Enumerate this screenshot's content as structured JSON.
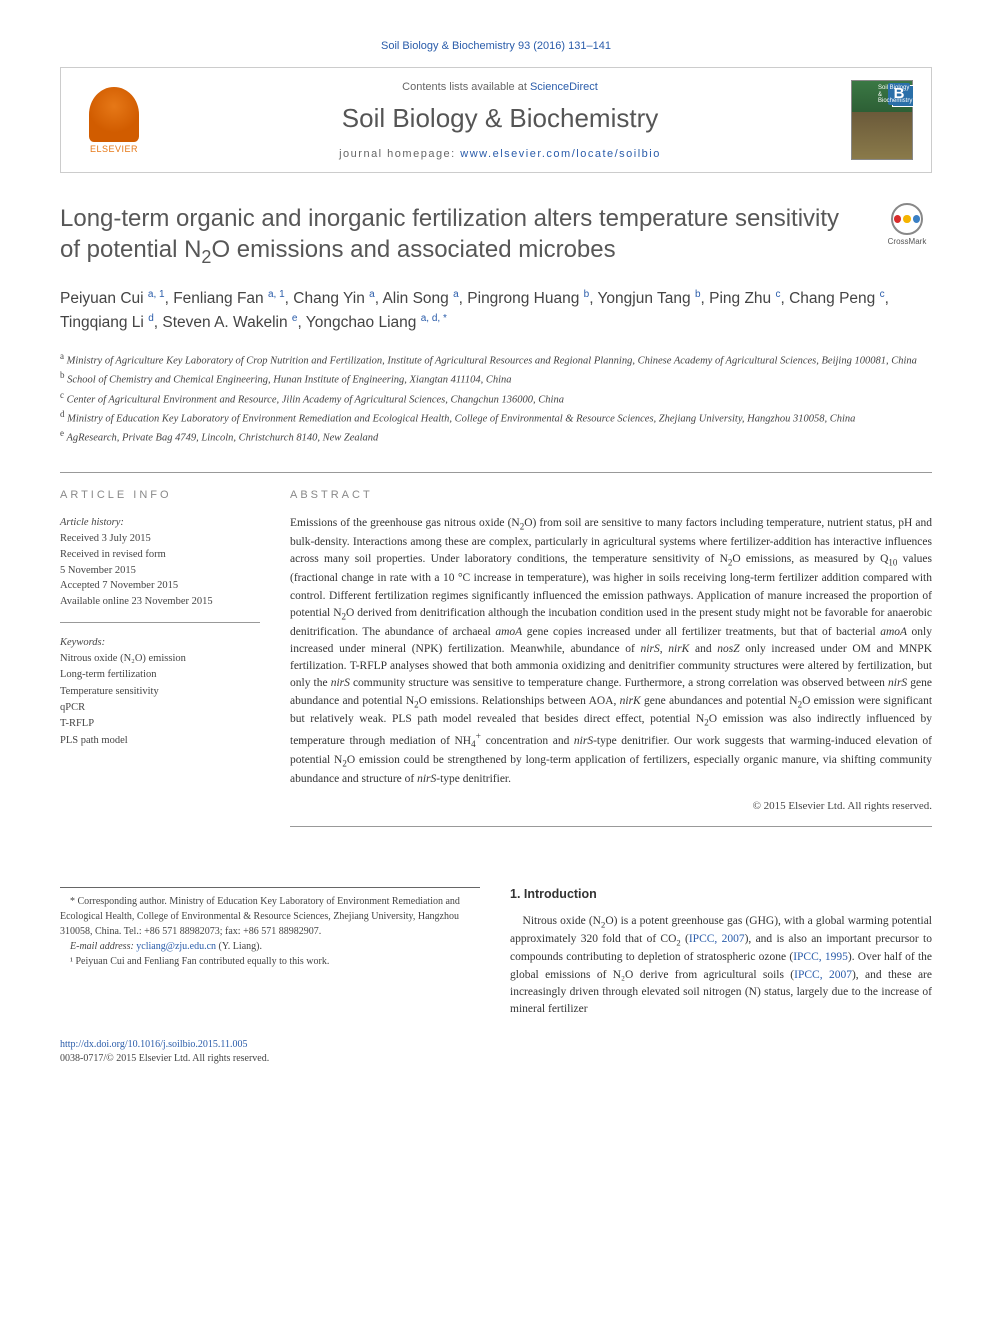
{
  "citation": "Soil Biology & Biochemistry 93 (2016) 131–141",
  "banner": {
    "contents_prefix": "Contents lists available at ",
    "contents_link": "ScienceDirect",
    "journal": "Soil Biology & Biochemistry",
    "homepage_prefix": "journal homepage: ",
    "homepage_url": "www.elsevier.com/locate/soilbio",
    "publisher_label": "ELSEVIER",
    "cover_badge": "B",
    "cover_label_1": "Soil Biology &",
    "cover_label_2": "Biochemistry"
  },
  "crossmark_label": "CrossMark",
  "title": "Long-term organic and inorganic fertilization alters temperature sensitivity of potential N₂O emissions and associated microbes",
  "authors_html": "Peiyuan Cui <sup>a, 1</sup>, Fenliang Fan <sup>a, 1</sup>, Chang Yin <sup>a</sup>, Alin Song <sup>a</sup>, Pingrong Huang <sup>b</sup>, Yongjun Tang <sup>b</sup>, Ping Zhu <sup>c</sup>, Chang Peng <sup>c</sup>, Tingqiang Li <sup>d</sup>, Steven A. Wakelin <sup>e</sup>, Yongchao Liang <sup>a, d, *</sup>",
  "affiliations": {
    "a": "Ministry of Agriculture Key Laboratory of Crop Nutrition and Fertilization, Institute of Agricultural Resources and Regional Planning, Chinese Academy of Agricultural Sciences, Beijing 100081, China",
    "b": "School of Chemistry and Chemical Engineering, Hunan Institute of Engineering, Xiangtan 411104, China",
    "c": "Center of Agricultural Environment and Resource, Jilin Academy of Agricultural Sciences, Changchun 136000, China",
    "d": "Ministry of Education Key Laboratory of Environment Remediation and Ecological Health, College of Environmental & Resource Sciences, Zhejiang University, Hangzhou 310058, China",
    "e": "AgResearch, Private Bag 4749, Lincoln, Christchurch 8140, New Zealand"
  },
  "info": {
    "heading": "ARTICLE INFO",
    "history_label": "Article history:",
    "received": "Received 3 July 2015",
    "revised": "Received in revised form",
    "revised_date": "5 November 2015",
    "accepted": "Accepted 7 November 2015",
    "online": "Available online 23 November 2015",
    "keywords_label": "Keywords:",
    "keywords": [
      "Nitrous oxide (N₂O) emission",
      "Long-term fertilization",
      "Temperature sensitivity",
      "qPCR",
      "T-RFLP",
      "PLS path model"
    ]
  },
  "abstract": {
    "heading": "ABSTRACT",
    "text": "Emissions of the greenhouse gas nitrous oxide (N₂O) from soil are sensitive to many factors including temperature, nutrient status, pH and bulk-density. Interactions among these are complex, particularly in agricultural systems where fertilizer-addition has interactive influences across many soil properties. Under laboratory conditions, the temperature sensitivity of N₂O emissions, as measured by Q₁₀ values (fractional change in rate with a 10 °C increase in temperature), was higher in soils receiving long-term fertilizer addition compared with control. Different fertilization regimes significantly influenced the emission pathways. Application of manure increased the proportion of potential N₂O derived from denitrification although the incubation condition used in the present study might not be favorable for anaerobic denitrification. The abundance of archaeal amoA gene copies increased under all fertilizer treatments, but that of bacterial amoA only increased under mineral (NPK) fertilization. Meanwhile, abundance of nirS, nirK and nosZ only increased under OM and MNPK fertilization. T-RFLP analyses showed that both ammonia oxidizing and denitrifier community structures were altered by fertilization, but only the nirS community structure was sensitive to temperature change. Furthermore, a strong correlation was observed between nirS gene abundance and potential N₂O emissions. Relationships between AOA, nirK gene abundances and potential N₂O emission were significant but relatively weak. PLS path model revealed that besides direct effect, potential N₂O emission was also indirectly influenced by temperature through mediation of NH₄⁺ concentration and nirS-type denitrifier. Our work suggests that warming-induced elevation of potential N₂O emission could be strengthened by long-term application of fertilizers, especially organic manure, via shifting community abundance and structure of nirS-type denitrifier.",
    "copyright": "© 2015 Elsevier Ltd. All rights reserved."
  },
  "intro": {
    "heading": "1.  Introduction",
    "text_parts": {
      "p1": "Nitrous oxide (N₂O) is a potent greenhouse gas (GHG), with a global warming potential approximately 320 fold that of CO₂ (",
      "ref1": "IPCC, 2007",
      "p2": "), and is also an important precursor to compounds contributing to depletion of stratospheric ozone (",
      "ref2": "IPCC, 1995",
      "p3": "). Over half of the global emissions of N₂O derive from agricultural soils (",
      "ref3": "IPCC, 2007",
      "p4": "), and these are increasingly driven through elevated soil nitrogen (N) status, largely due to the increase of mineral fertilizer"
    }
  },
  "footnotes": {
    "corr_label": "* Corresponding author. Ministry of Education Key Laboratory of Environment Remediation and Ecological Health, College of Environmental & Resource Sciences, Zhejiang University, Hangzhou 310058, China. Tel.: +86 571 88982073; fax: +86 571 88982907.",
    "email_label": "E-mail address: ",
    "email": "ycliang@zju.edu.cn",
    "email_suffix": " (Y. Liang).",
    "equal": "¹ Peiyuan Cui and Fenliang Fan contributed equally to this work."
  },
  "doi": {
    "url": "http://dx.doi.org/10.1016/j.soilbio.2015.11.005",
    "issn_line": "0038-0717/© 2015 Elsevier Ltd. All rights reserved."
  },
  "colors": {
    "link": "#2a5caa",
    "heading_gray": "#575757",
    "light_gray": "#888",
    "text": "#333",
    "elsevier": "#e67817"
  }
}
